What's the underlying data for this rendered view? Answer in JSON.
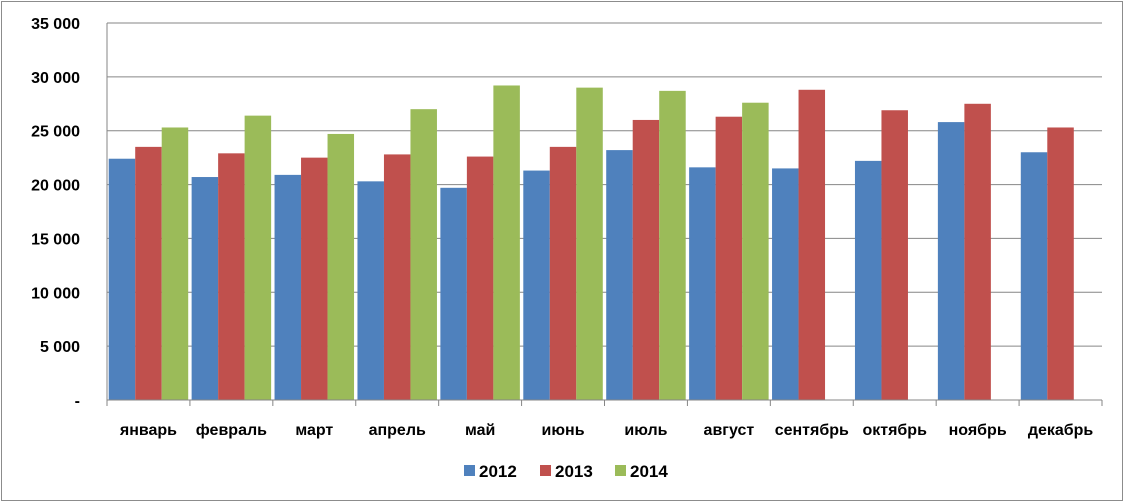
{
  "chart_data": {
    "type": "bar",
    "title": "",
    "xlabel": "",
    "ylabel": "",
    "ylim": [
      0,
      35000
    ],
    "yticks": [
      {
        "value": 0,
        "label": "-"
      },
      {
        "value": 5000,
        "label": "5 000"
      },
      {
        "value": 10000,
        "label": "10 000"
      },
      {
        "value": 15000,
        "label": "15 000"
      },
      {
        "value": 20000,
        "label": "20 000"
      },
      {
        "value": 25000,
        "label": "25 000"
      },
      {
        "value": 30000,
        "label": "30 000"
      },
      {
        "value": 35000,
        "label": "35 000"
      }
    ],
    "grid": true,
    "legend_position": "bottom",
    "categories": [
      "январь",
      "февраль",
      "март",
      "апрель",
      "май",
      "июнь",
      "июль",
      "август",
      "сентябрь",
      "октябрь",
      "ноябрь",
      "декабрь"
    ],
    "series": [
      {
        "name": "2012",
        "color": "#4f81bd",
        "values": [
          22400,
          20700,
          20900,
          20300,
          19700,
          21300,
          23200,
          21600,
          21500,
          22200,
          25800,
          23000
        ]
      },
      {
        "name": "2013",
        "color": "#c0504d",
        "values": [
          23500,
          22900,
          22500,
          22800,
          22600,
          23500,
          26000,
          26300,
          28800,
          26900,
          27500,
          25300
        ]
      },
      {
        "name": "2014",
        "color": "#9bbb59",
        "values": [
          25300,
          26400,
          24700,
          27000,
          29200,
          29000,
          28700,
          27600,
          null,
          null,
          null,
          null
        ]
      }
    ]
  }
}
